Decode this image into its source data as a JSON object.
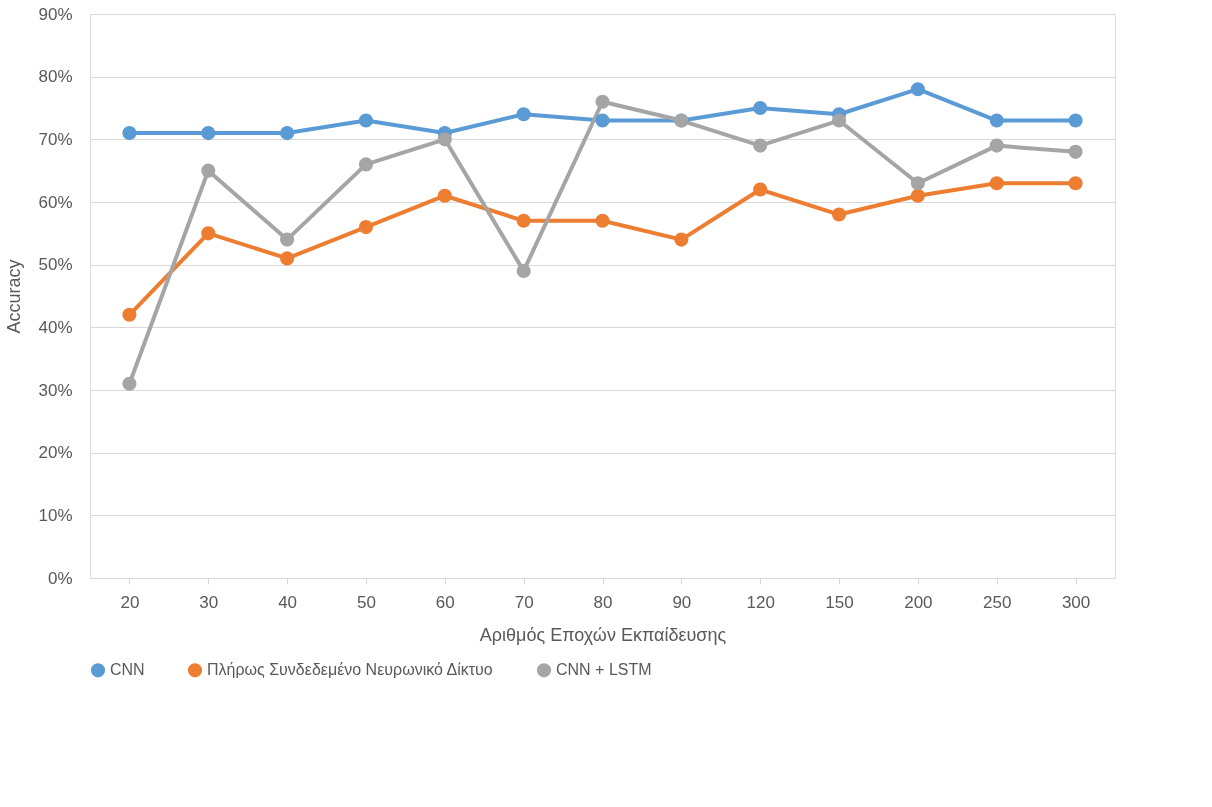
{
  "chart_data": {
    "type": "line",
    "xlabel": "Αριθμός Εποχών Εκπαίδευσης",
    "ylabel": "Accuracy",
    "categories": [
      "20",
      "30",
      "40",
      "50",
      "60",
      "70",
      "80",
      "90",
      "120",
      "150",
      "200",
      "250",
      "300"
    ],
    "series": [
      {
        "name": "CNN",
        "color": "#5b9bd5",
        "values": [
          71,
          71,
          71,
          73,
          71,
          74,
          73,
          73,
          75,
          74,
          78,
          73,
          73
        ]
      },
      {
        "name": "Πλήρως Συνδεδεμένο Νευρωνικό Δίκτυο",
        "color": "#ed7d31",
        "values": [
          42,
          55,
          51,
          56,
          61,
          57,
          57,
          54,
          62,
          58,
          61,
          63,
          63
        ]
      },
      {
        "name": "CNN + LSTM",
        "color": "#a5a5a5",
        "values": [
          31,
          65,
          54,
          66,
          70,
          49,
          76,
          73,
          69,
          73,
          63,
          69,
          68
        ]
      }
    ],
    "ylim": [
      0,
      90
    ],
    "yticks": [
      {
        "value": 0,
        "label": "0%"
      },
      {
        "value": 10,
        "label": "10%"
      },
      {
        "value": 20,
        "label": "20%"
      },
      {
        "value": 30,
        "label": "30%"
      },
      {
        "value": 40,
        "label": "40%"
      },
      {
        "value": 50,
        "label": "50%"
      },
      {
        "value": 60,
        "label": "60%"
      },
      {
        "value": 70,
        "label": "70%"
      },
      {
        "value": 80,
        "label": "80%"
      },
      {
        "value": 90,
        "label": "90%"
      }
    ],
    "grid": "y",
    "legend": "bottom",
    "marker": "circle",
    "line_style": "solid"
  }
}
